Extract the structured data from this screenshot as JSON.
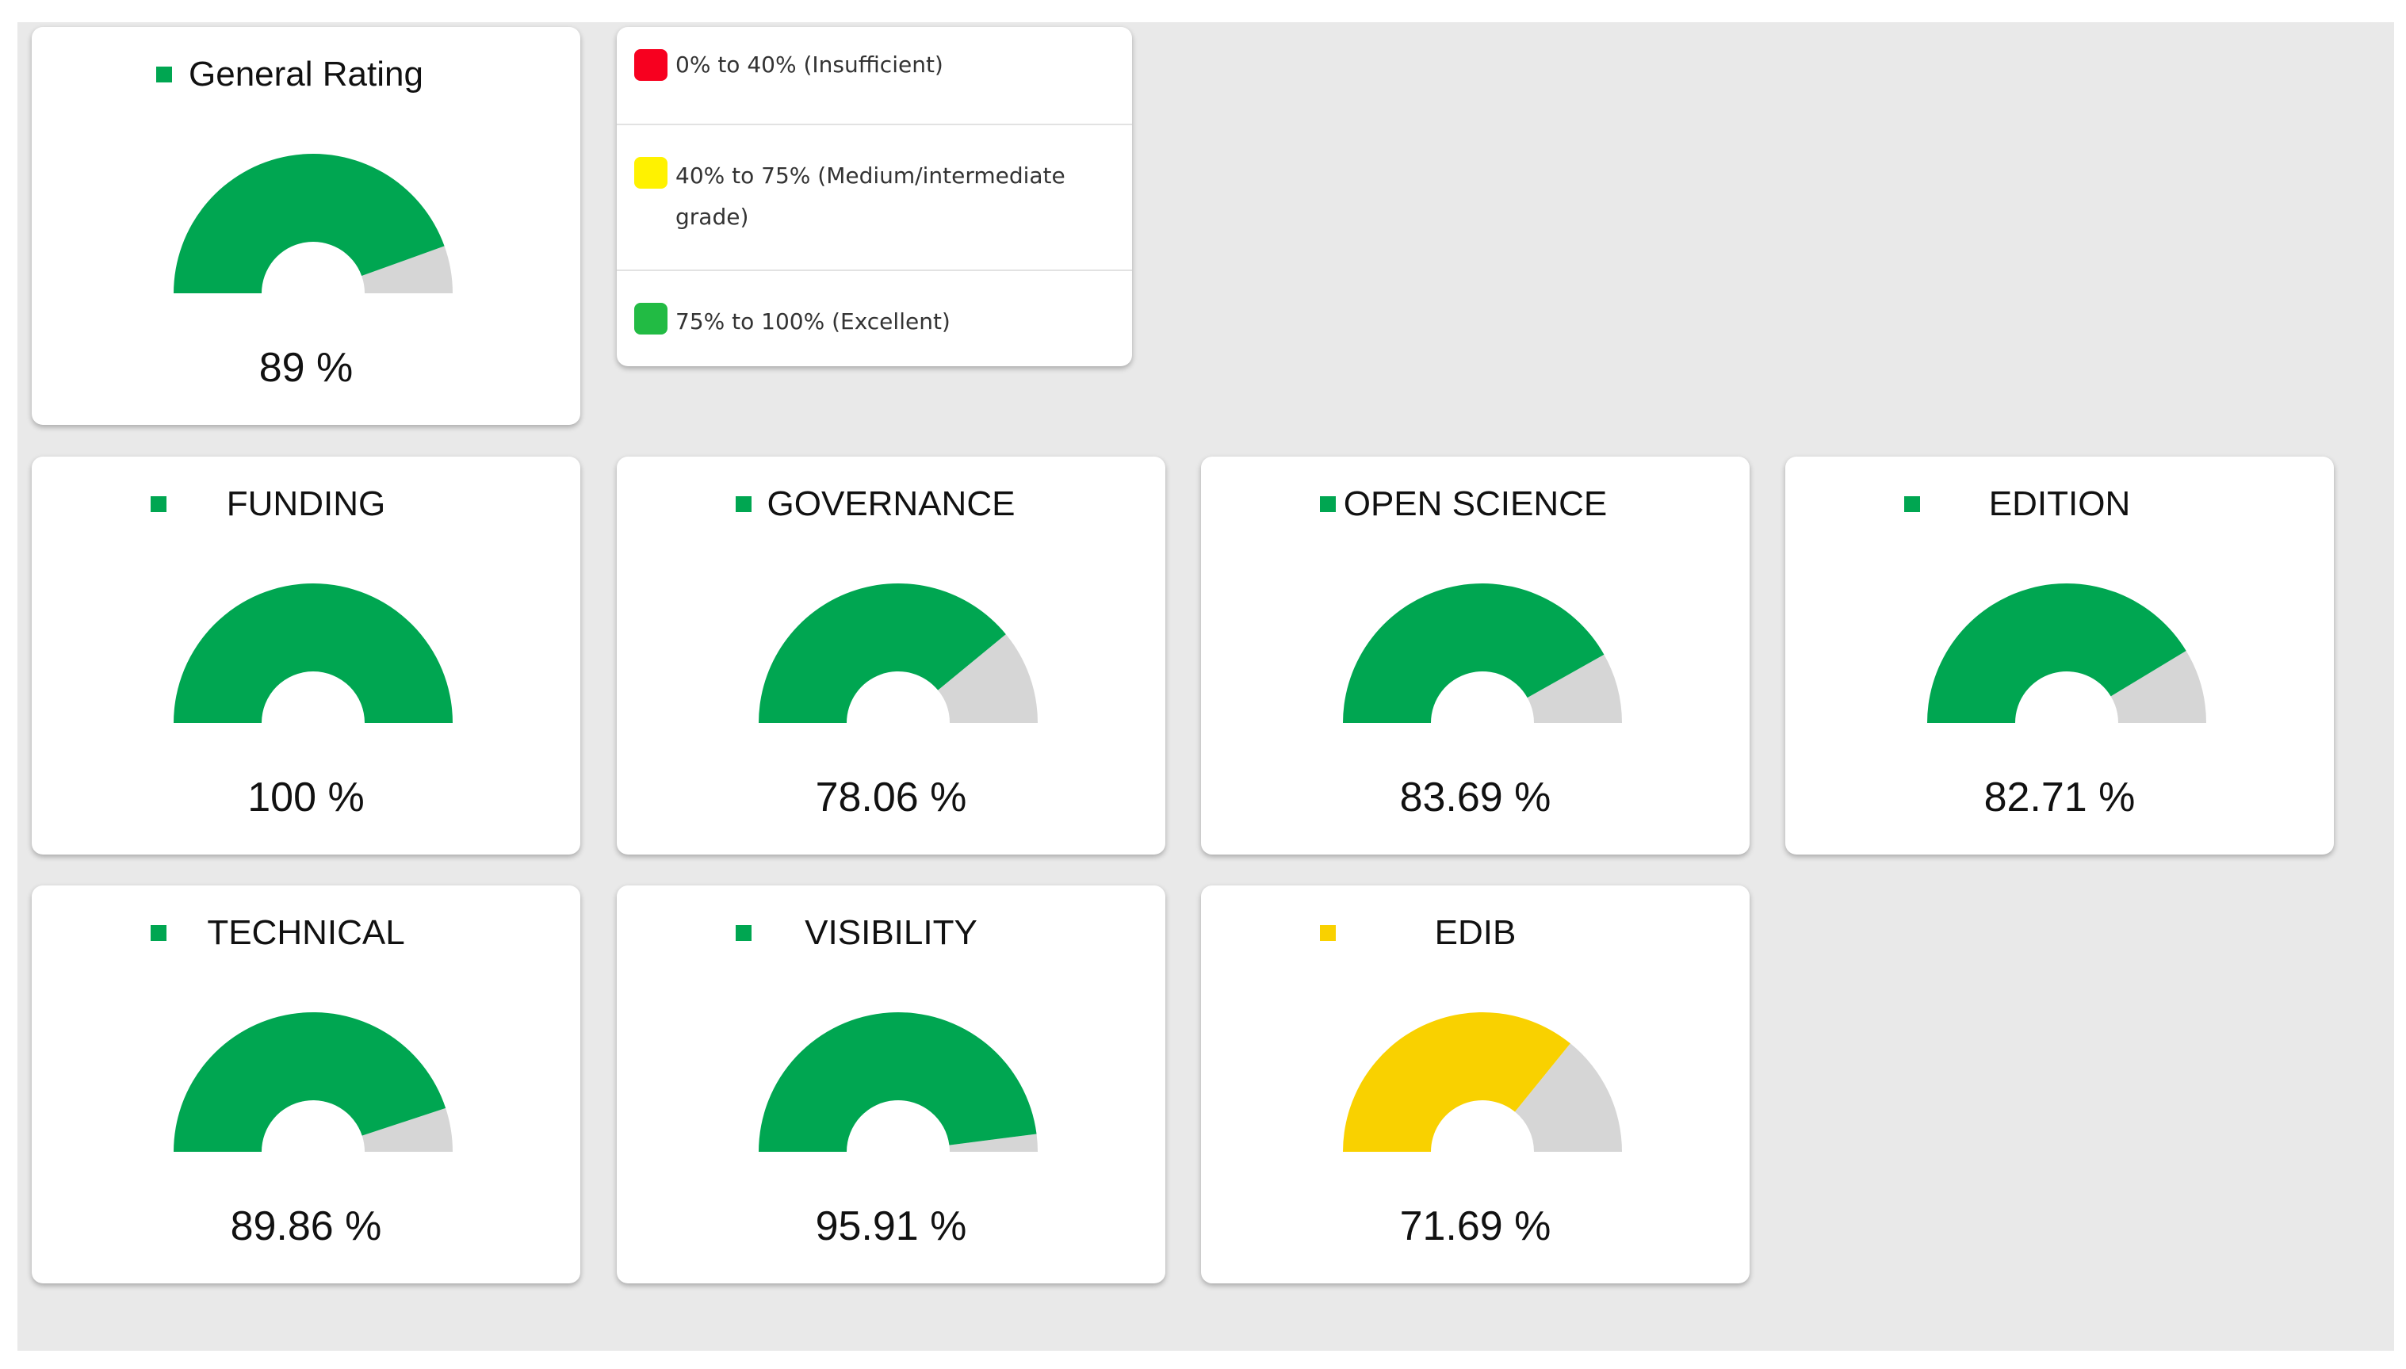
{
  "colors": {
    "panel_bg": "#e9e9e9",
    "card_bg": "#ffffff",
    "green": "#00a651",
    "yellow": "#f9d100",
    "red": "#f7001f",
    "legend_yellow": "#fff200",
    "legend_green": "#22bb44",
    "gauge_remainder": "#d6d6d6"
  },
  "legend": {
    "items": [
      {
        "color": "#f7001f",
        "label": "0% to 40% (Insufficient)",
        "icon": "red-square"
      },
      {
        "color": "#fff200",
        "label": "40% to 75% (Medium/intermediate grade)",
        "icon": "yellow-square"
      },
      {
        "color": "#22bb44",
        "label": "75% to 100% (Excellent)",
        "icon": "green-square"
      }
    ]
  },
  "gauges": [
    {
      "id": "general-rating",
      "title": "General Rating",
      "value": 89,
      "value_text": "89 %",
      "status": "green"
    },
    {
      "id": "funding",
      "title": "FUNDING",
      "value": 100,
      "value_text": "100 %",
      "status": "green"
    },
    {
      "id": "governance",
      "title": "GOVERNANCE",
      "value": 78.06,
      "value_text": "78.06 %",
      "status": "green"
    },
    {
      "id": "open-science",
      "title": "OPEN SCIENCE",
      "value": 83.69,
      "value_text": "83.69 %",
      "status": "green"
    },
    {
      "id": "edition",
      "title": "EDITION",
      "value": 82.71,
      "value_text": "82.71 %",
      "status": "green"
    },
    {
      "id": "technical",
      "title": "TECHNICAL",
      "value": 89.86,
      "value_text": "89.86 %",
      "status": "green"
    },
    {
      "id": "visibility",
      "title": "VISIBILITY",
      "value": 95.91,
      "value_text": "95.91 %",
      "status": "green"
    },
    {
      "id": "edib",
      "title": "EDIB",
      "value": 71.69,
      "value_text": "71.69 %",
      "status": "yellow"
    }
  ]
}
